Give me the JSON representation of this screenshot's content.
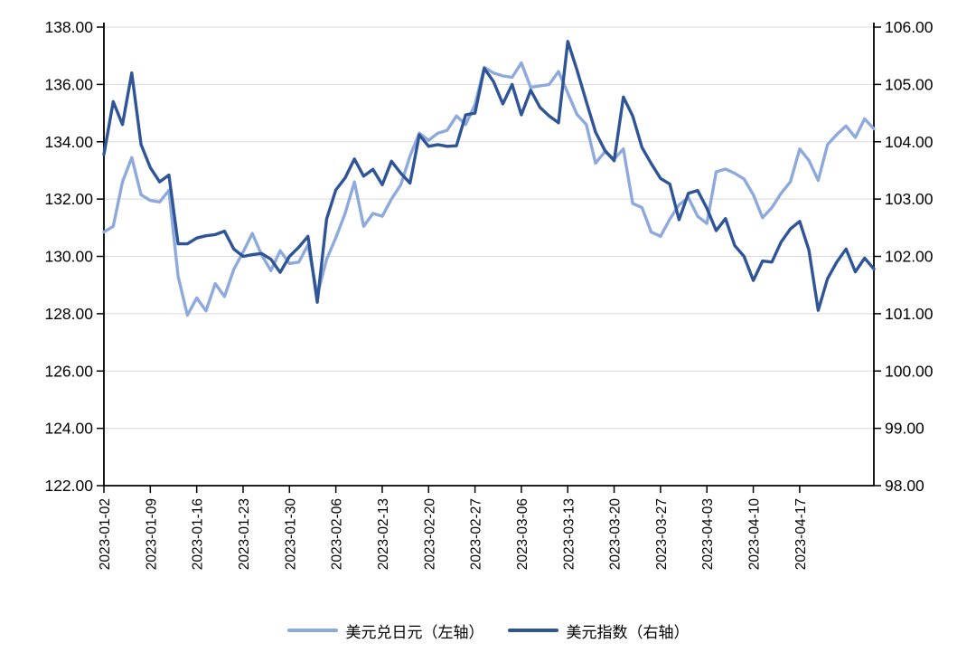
{
  "chart_data": {
    "type": "line",
    "title": "",
    "xlabel": "",
    "ylabel_left": "",
    "ylabel_right": "",
    "grid": "horizontal",
    "legend_position": "bottom",
    "x_tick_every": 5,
    "x_tick_labels": [
      "2023-01-02",
      "2023-01-09",
      "2023-01-16",
      "2023-01-23",
      "2023-01-30",
      "2023-02-06",
      "2023-02-13",
      "2023-02-20",
      "2023-02-27",
      "2023-03-06",
      "2023-03-13",
      "2023-03-20",
      "2023-03-27",
      "2023-04-03",
      "2023-04-10",
      "2023-04-17"
    ],
    "left_axis": {
      "min": 122,
      "max": 138,
      "step": 2,
      "tick_labels": [
        "138.00",
        "136.00",
        "134.00",
        "132.00",
        "130.00",
        "128.00",
        "126.00",
        "124.00",
        "122.00"
      ]
    },
    "right_axis": {
      "min": 98,
      "max": 106,
      "step": 1,
      "tick_labels": [
        "106.00",
        "105.00",
        "104.00",
        "103.00",
        "102.00",
        "101.00",
        "100.00",
        "99.00",
        "98.00"
      ]
    },
    "series": [
      {
        "name": "美元兑日元（左轴）",
        "axis": "left",
        "color": "#8EA9DB",
        "values": [
          130.85,
          131.05,
          132.6,
          133.45,
          132.15,
          131.95,
          131.9,
          132.3,
          129.3,
          127.95,
          128.55,
          128.1,
          129.05,
          128.6,
          129.55,
          130.15,
          130.8,
          130.05,
          129.5,
          130.2,
          129.75,
          129.8,
          130.4,
          128.65,
          129.9,
          130.65,
          131.5,
          132.6,
          131.05,
          131.5,
          131.4,
          132.0,
          132.5,
          133.5,
          134.3,
          134.05,
          134.3,
          134.4,
          134.9,
          134.6,
          135.3,
          136.6,
          136.4,
          136.3,
          136.25,
          136.75,
          135.9,
          135.95,
          136.0,
          136.45,
          135.7,
          134.95,
          134.6,
          133.25,
          133.65,
          133.4,
          133.75,
          131.85,
          131.7,
          130.85,
          130.7,
          131.3,
          131.8,
          132.05,
          131.4,
          131.15,
          132.95,
          133.05,
          132.9,
          132.7,
          132.15,
          131.35,
          131.7,
          132.2,
          132.6,
          133.75,
          133.35,
          132.65,
          133.9,
          134.25,
          134.55,
          134.15,
          134.8,
          134.45
        ]
      },
      {
        "name": "美元指数（右轴）",
        "axis": "right",
        "color": "#2F5597",
        "values": [
          103.78,
          104.7,
          104.3,
          105.2,
          103.95,
          103.55,
          103.3,
          103.42,
          102.22,
          102.22,
          102.32,
          102.36,
          102.38,
          102.44,
          102.13,
          102.0,
          102.03,
          102.05,
          101.95,
          101.72,
          102.0,
          102.16,
          102.35,
          101.2,
          102.65,
          103.16,
          103.37,
          103.7,
          103.4,
          103.52,
          103.25,
          103.66,
          103.45,
          103.28,
          104.12,
          103.92,
          103.95,
          103.92,
          103.93,
          104.47,
          104.5,
          105.28,
          105.05,
          104.66,
          105.0,
          104.47,
          104.9,
          104.6,
          104.45,
          104.33,
          105.75,
          105.25,
          104.7,
          104.17,
          103.85,
          103.67,
          104.78,
          104.45,
          103.9,
          103.62,
          103.36,
          103.26,
          102.64,
          103.1,
          103.15,
          102.84,
          102.45,
          102.66,
          102.19,
          102.0,
          101.58,
          101.92,
          101.9,
          102.25,
          102.48,
          102.61,
          102.11,
          101.06,
          101.61,
          101.9,
          102.13,
          101.73,
          101.97,
          101.78
        ]
      }
    ]
  },
  "colors": {
    "background": "#FFFFFF",
    "grid": "#D9D9D9",
    "axis": "#000000",
    "text": "#000000"
  }
}
